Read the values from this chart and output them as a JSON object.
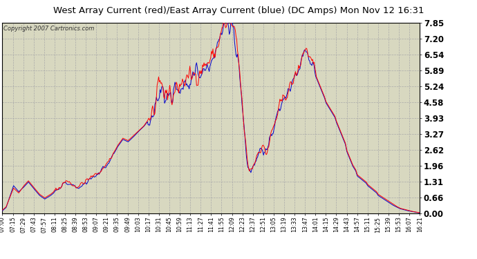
{
  "title": "West Array Current (red)/East Array Current (blue) (DC Amps) Mon Nov 12 16:31",
  "copyright": "Copyright 2007 Cartronics.com",
  "yticks": [
    0.0,
    0.66,
    1.31,
    1.96,
    2.62,
    3.27,
    3.93,
    4.58,
    5.24,
    5.89,
    6.54,
    7.2,
    7.85
  ],
  "ymin": 0.0,
  "ymax": 7.85,
  "bg_color": "#d8d8c0",
  "grid_color": "#aaaaaa",
  "red_color": "#ff0000",
  "blue_color": "#0000cc",
  "title_bg": "#c8c8c8",
  "border_color": "#000000",
  "xtick_labels": [
    "07:00",
    "07:15",
    "07:29",
    "07:43",
    "07:57",
    "08:11",
    "08:25",
    "08:39",
    "08:53",
    "09:07",
    "09:21",
    "09:35",
    "09:49",
    "10:03",
    "10:17",
    "10:31",
    "10:45",
    "10:59",
    "11:13",
    "11:27",
    "11:41",
    "11:55",
    "12:09",
    "12:23",
    "12:37",
    "12:51",
    "13:05",
    "13:19",
    "13:33",
    "13:47",
    "14:01",
    "14:15",
    "14:29",
    "14:43",
    "14:57",
    "15:11",
    "15:25",
    "15:39",
    "15:53",
    "16:07",
    "16:21"
  ],
  "figwidth": 6.9,
  "figheight": 3.75,
  "dpi": 100
}
